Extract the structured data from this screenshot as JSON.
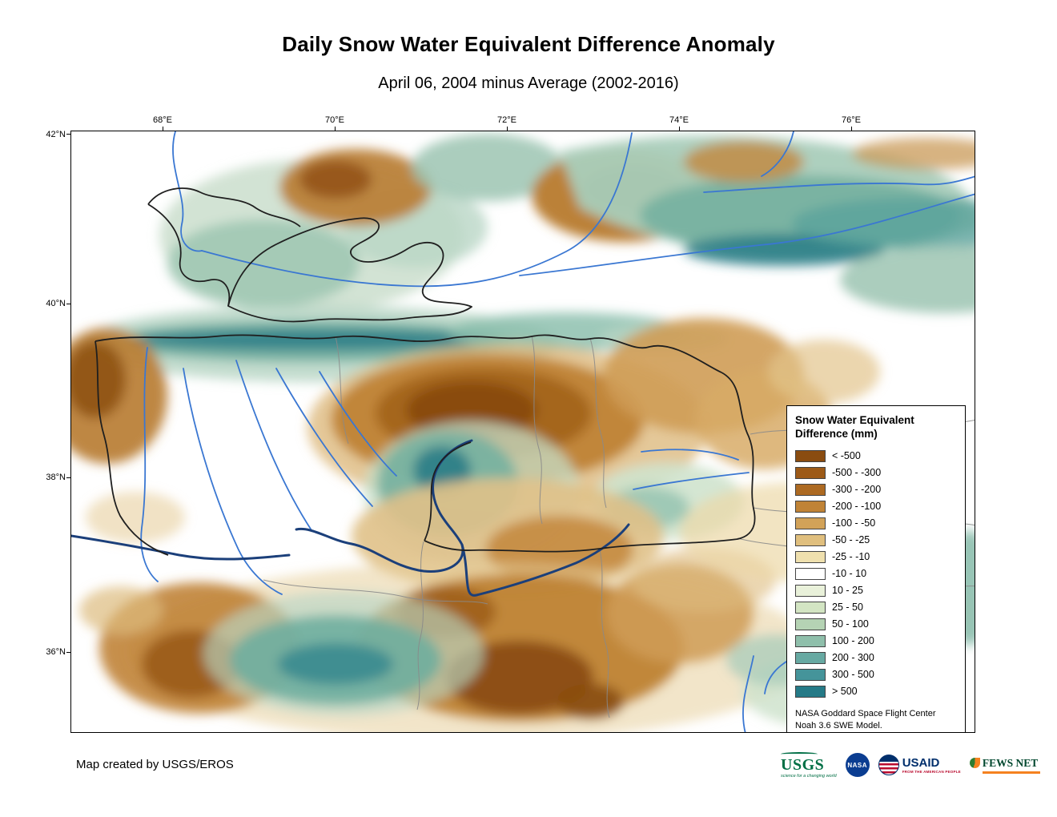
{
  "title": "Daily Snow Water Equivalent Difference Anomaly",
  "subtitle": "April 06, 2004 minus Average (2002-2016)",
  "map": {
    "x_ticks": [
      "68°E",
      "70°E",
      "72°E",
      "74°E",
      "76°E"
    ],
    "y_ticks": [
      "42°N",
      "40°N",
      "38°N",
      "36°N"
    ]
  },
  "legend": {
    "title_line1": "Snow Water Equivalent",
    "title_line2": "Difference (mm)",
    "entries": [
      {
        "label": "< -500",
        "color": "#8a4c10"
      },
      {
        "label": "-500 - -300",
        "color": "#9d5a17"
      },
      {
        "label": "-300 - -200",
        "color": "#ad6a22"
      },
      {
        "label": "-200 - -100",
        "color": "#c08336"
      },
      {
        "label": "-100 - -50",
        "color": "#d2a258"
      },
      {
        "label": "-50 - -25",
        "color": "#e0bf7e"
      },
      {
        "label": "-25 - -10",
        "color": "#efe0ae"
      },
      {
        "label": "-10 - 10",
        "color": "#ffffff"
      },
      {
        "label": "10 - 25",
        "color": "#e9f1da"
      },
      {
        "label": "25 - 50",
        "color": "#d3e5c3"
      },
      {
        "label": "50 - 100",
        "color": "#b5d3b4"
      },
      {
        "label": "100 - 200",
        "color": "#8fbfab"
      },
      {
        "label": "200 - 300",
        "color": "#67a9a2"
      },
      {
        "label": "300 - 500",
        "color": "#45949a"
      },
      {
        "label": "> 500",
        "color": "#257a87"
      }
    ],
    "attribution_line1": "NASA Goddard Space Flight Center",
    "attribution_line2": "Noah 3.6 SWE Model."
  },
  "footer": {
    "credit": "Map created by USGS/EROS"
  },
  "logos": {
    "usgs": {
      "name": "USGS",
      "tagline": "science for a changing world"
    },
    "nasa": {
      "name": "NASA"
    },
    "usaid": {
      "name": "USAID",
      "tagline": "FROM THE AMERICAN PEOPLE"
    },
    "fewsnet": {
      "name": "FEWS NET"
    }
  }
}
